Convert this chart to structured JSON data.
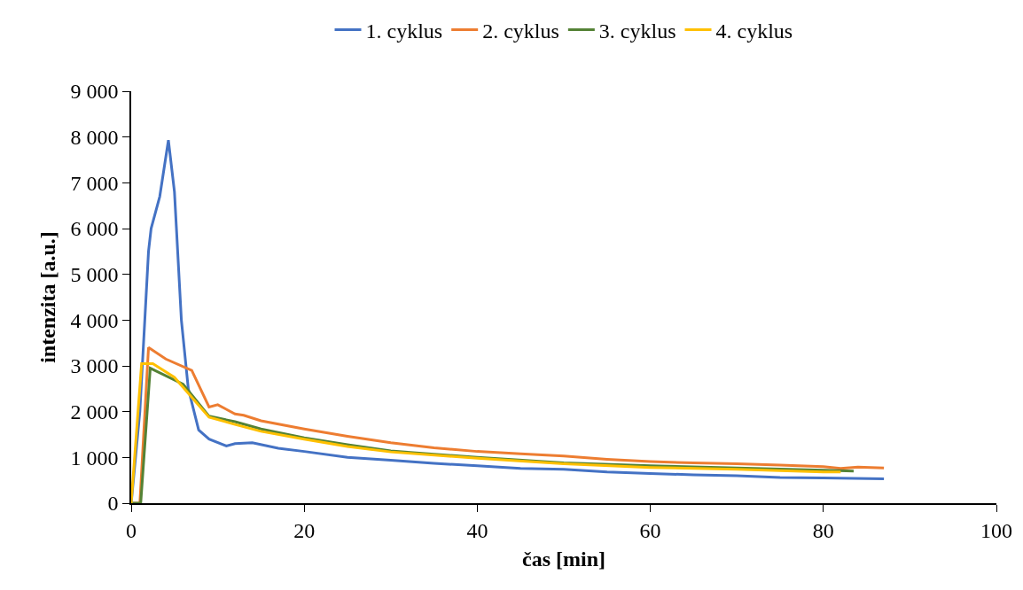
{
  "chart_data": {
    "type": "line",
    "xlabel": "čas [min]",
    "ylabel": "intenzita [a.u.]",
    "xlim": [
      0,
      100
    ],
    "xticks": [
      0,
      20,
      40,
      60,
      80,
      100
    ],
    "ylim": [
      0,
      9000
    ],
    "yticks": [
      {
        "value": 0,
        "label": "0"
      },
      {
        "value": 1000,
        "label": "1 000"
      },
      {
        "value": 2000,
        "label": "2 000"
      },
      {
        "value": 3000,
        "label": "3 000"
      },
      {
        "value": 4000,
        "label": "4 000"
      },
      {
        "value": 5000,
        "label": "5 000"
      },
      {
        "value": 6000,
        "label": "6 000"
      },
      {
        "value": 7000,
        "label": "7 000"
      },
      {
        "value": 8000,
        "label": "8 000"
      },
      {
        "value": 9000,
        "label": "9 000"
      }
    ],
    "legend": "top",
    "marker": "none",
    "line_style": "solid",
    "series": [
      {
        "name": "1. cyklus",
        "color": "#4472c4",
        "x": [
          0,
          1,
          2,
          2.3,
          3.3,
          4.3,
          5,
          5.8,
          6.6,
          7.8,
          9,
          11,
          12,
          14,
          17,
          20,
          25,
          30,
          35,
          40,
          45,
          50,
          55,
          60,
          65,
          70,
          75,
          80,
          87
        ],
        "values": [
          0,
          2000,
          5500,
          6000,
          6700,
          7930,
          6800,
          4000,
          2500,
          1600,
          1400,
          1250,
          1300,
          1320,
          1200,
          1130,
          1000,
          940,
          870,
          820,
          760,
          740,
          680,
          650,
          620,
          600,
          560,
          550,
          530
        ]
      },
      {
        "name": "2. cyklus",
        "color": "#ed7d31",
        "x": [
          0,
          1,
          2,
          4,
          7,
          9,
          10,
          12,
          13,
          15,
          20,
          25,
          30,
          35,
          40,
          45,
          50,
          55,
          60,
          65,
          70,
          75,
          80,
          82,
          84,
          87
        ],
        "values": [
          0,
          0,
          3400,
          3150,
          2900,
          2100,
          2150,
          1950,
          1920,
          1800,
          1620,
          1460,
          1320,
          1210,
          1130,
          1080,
          1030,
          960,
          910,
          880,
          860,
          830,
          800,
          760,
          790,
          770
        ]
      },
      {
        "name": "3. cyklus",
        "color": "#548235",
        "x": [
          0,
          1.1,
          2.2,
          6,
          9,
          12,
          15,
          20,
          25,
          30,
          40,
          50,
          60,
          70,
          80,
          83.5
        ],
        "values": [
          0,
          0,
          2950,
          2600,
          1900,
          1780,
          1620,
          1430,
          1280,
          1140,
          1000,
          880,
          820,
          770,
          720,
          700
        ]
      },
      {
        "name": "4. cyklus",
        "color": "#ffc000",
        "x": [
          0,
          1.2,
          2.5,
          5,
          9,
          12,
          15,
          20,
          25,
          30,
          40,
          50,
          60,
          70,
          80,
          82
        ],
        "values": [
          0,
          3050,
          3050,
          2750,
          1880,
          1720,
          1570,
          1400,
          1240,
          1120,
          980,
          860,
          780,
          740,
          680,
          680
        ]
      }
    ]
  }
}
